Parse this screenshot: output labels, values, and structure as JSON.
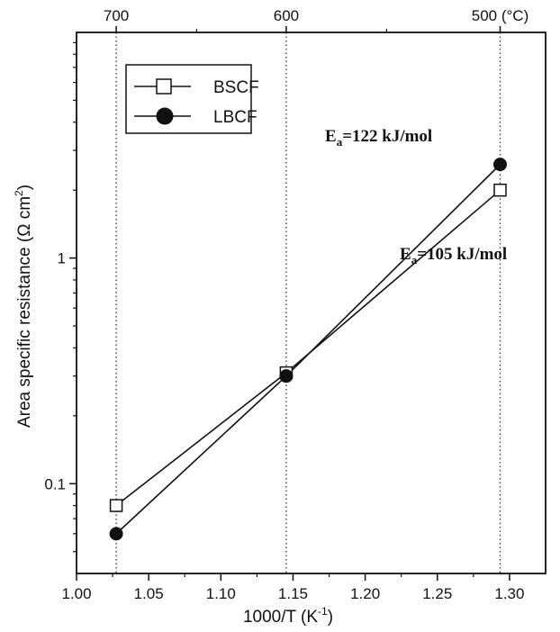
{
  "chart_data": {
    "type": "scatter",
    "x_axis": {
      "label": "1000/T (K",
      "label_sup": "-1",
      "label_end": ")",
      "lim": [
        1.0,
        1.325
      ],
      "ticks": [
        1.0,
        1.05,
        1.1,
        1.15,
        1.2,
        1.25,
        1.3
      ],
      "tick_labels": [
        "1.00",
        "1.05",
        "1.10",
        "1.15",
        "1.20",
        "1.25",
        "1.30"
      ]
    },
    "y_axis": {
      "label": "Area specific resistance (Ω cm",
      "label_sup": "2",
      "label_end": ")",
      "scale": "log",
      "lim": [
        0.04,
        10
      ],
      "ticks": [
        0.1,
        1
      ],
      "tick_labels": [
        "0.1",
        "1"
      ]
    },
    "top_axis": {
      "ticks": [
        1.0275,
        1.1453,
        1.2935
      ],
      "tick_labels": [
        "700",
        "600",
        "500 (°C)"
      ]
    },
    "vertical_reference_lines": [
      1.0275,
      1.1453,
      1.2935
    ],
    "series": [
      {
        "name": "BSCF",
        "marker": "open-square",
        "x": [
          1.0275,
          1.1453,
          1.2935
        ],
        "y": [
          0.08,
          0.31,
          2.0
        ]
      },
      {
        "name": "LBCF",
        "marker": "filled-circle",
        "x": [
          1.0275,
          1.1453,
          1.2935
        ],
        "y": [
          0.06,
          0.3,
          2.6
        ]
      }
    ],
    "annotations": [
      {
        "main": "E",
        "sub": "a",
        "rest": "=122 kJ/mol"
      },
      {
        "main": "E",
        "sub": "a",
        "rest": "=105 kJ/mol"
      }
    ],
    "legend_position": "top-left",
    "grid": false
  }
}
